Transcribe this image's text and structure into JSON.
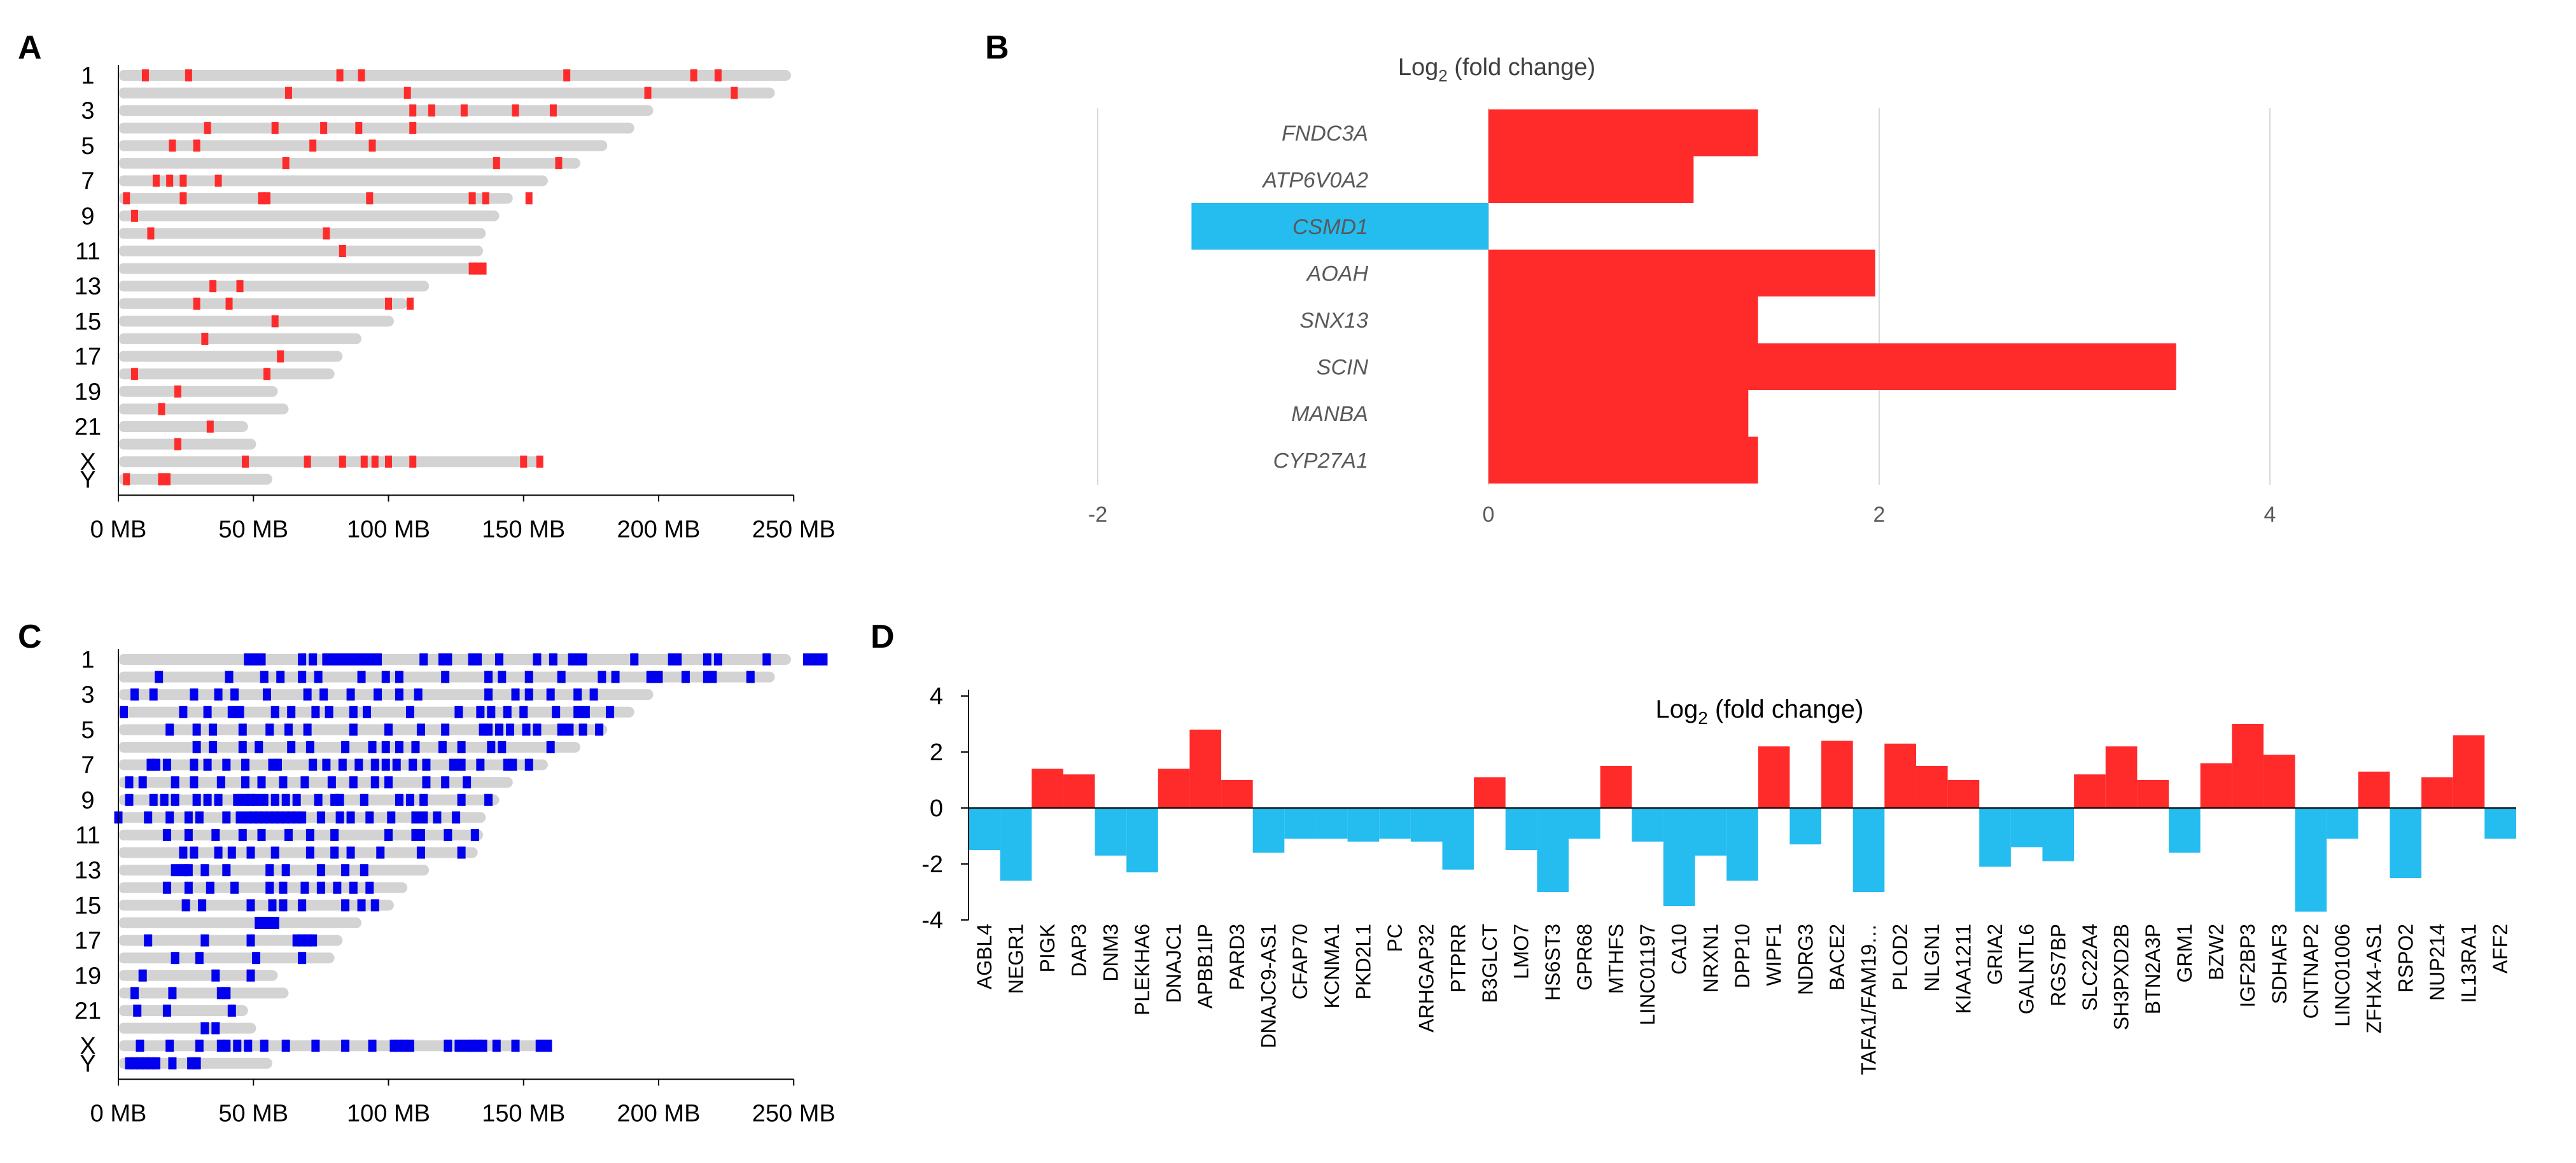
{
  "panels": {
    "A": "A",
    "B": "B",
    "C": "C",
    "D": "D"
  },
  "colors": {
    "ideogram": "#d3d3d3",
    "red": "#ff2b2b",
    "blue": "#0000ee",
    "cyan": "#25bcf0",
    "grid": "#d9d9d9"
  },
  "chart_data": [
    {
      "id": "A",
      "type": "table",
      "description_type": "karyogram",
      "chromosome_labels": [
        "1",
        "3",
        "5",
        "7",
        "9",
        "11",
        "13",
        "15",
        "17",
        "19",
        "21",
        "X",
        "Y"
      ],
      "chromosomes": [
        "1",
        "2",
        "3",
        "4",
        "5",
        "6",
        "7",
        "8",
        "9",
        "10",
        "11",
        "12",
        "13",
        "14",
        "15",
        "16",
        "17",
        "18",
        "19",
        "20",
        "21",
        "22",
        "X",
        "Y"
      ],
      "lengths_mb": [
        249,
        243,
        198,
        191,
        181,
        171,
        159,
        146,
        141,
        136,
        135,
        133,
        115,
        107,
        102,
        90,
        83,
        80,
        59,
        63,
        48,
        51,
        156,
        57
      ],
      "xticks": [
        "0 MB",
        "50 MB",
        "100 MB",
        "150 MB",
        "200 MB",
        "250 MB"
      ],
      "xrange": [
        0,
        260
      ],
      "marks_mb": [
        [
          10,
          26,
          82,
          90,
          166,
          213,
          222
        ],
        [
          63,
          107,
          196,
          228
        ],
        [
          109,
          116,
          128,
          147,
          161
        ],
        [
          33,
          58,
          76,
          89,
          109
        ],
        [
          20,
          29,
          72,
          94
        ],
        [
          62,
          140,
          163
        ],
        [
          14,
          19,
          24,
          37
        ],
        [
          3,
          24,
          53,
          55,
          93,
          131,
          136,
          152
        ],
        [
          6
        ],
        [
          12,
          77
        ],
        [
          83
        ],
        [
          131,
          133,
          135
        ],
        [
          35,
          45
        ],
        [
          29,
          41,
          100,
          108
        ],
        [
          58
        ],
        [
          32
        ],
        [
          60
        ],
        [
          6,
          55
        ],
        [
          22
        ],
        [
          16
        ],
        [
          34
        ],
        [
          22
        ],
        [
          47,
          70,
          83,
          91,
          95,
          100,
          109,
          150,
          156
        ],
        [
          3,
          16,
          18
        ]
      ]
    },
    {
      "id": "B",
      "type": "bar",
      "orientation": "horizontal",
      "title_base": "Log",
      "title_sub": "2",
      "title_rest": " (fold change)",
      "categories": [
        "FNDC3A",
        "ATP6V0A2",
        "CSMD1",
        "AOAH",
        "SNX13",
        "SCIN",
        "MANBA",
        "CYP27A1"
      ],
      "values": [
        1.38,
        1.05,
        -1.52,
        1.98,
        1.38,
        3.52,
        1.33,
        1.38
      ],
      "xlim": [
        -2,
        4
      ],
      "xticks": [
        "-2",
        "0",
        "2",
        "4"
      ]
    },
    {
      "id": "C",
      "type": "table",
      "description_type": "karyogram",
      "chromosome_labels": [
        "1",
        "3",
        "5",
        "7",
        "9",
        "11",
        "13",
        "15",
        "17",
        "19",
        "21",
        "X",
        "Y"
      ],
      "chromosomes": [
        "1",
        "2",
        "3",
        "4",
        "5",
        "6",
        "7",
        "8",
        "9",
        "10",
        "11",
        "12",
        "13",
        "14",
        "15",
        "16",
        "17",
        "18",
        "19",
        "20",
        "21",
        "22",
        "X",
        "Y"
      ],
      "lengths_mb": [
        249,
        243,
        198,
        191,
        181,
        171,
        159,
        146,
        141,
        136,
        135,
        133,
        115,
        107,
        102,
        90,
        83,
        80,
        59,
        63,
        48,
        51,
        156,
        57
      ],
      "xticks": [
        "0 MB",
        "50 MB",
        "100 MB",
        "150 MB",
        "200 MB",
        "250 MB"
      ],
      "xrange": [
        0,
        260
      ],
      "marks_mb": [
        [
          48,
          50,
          53,
          68,
          72,
          77,
          79,
          81,
          83,
          85,
          87,
          89,
          91,
          93,
          96,
          113,
          120,
          122,
          131,
          133,
          141,
          155,
          161,
          168,
          170,
          172,
          191,
          205,
          207,
          218,
          222,
          240,
          255,
          257,
          259,
          261
        ],
        [
          15,
          41,
          54,
          60,
          68,
          74,
          90,
          99,
          104,
          121,
          137,
          142,
          152,
          164,
          179,
          184,
          197,
          200,
          210,
          218,
          220,
          234
        ],
        [
          6,
          13,
          28,
          37,
          43,
          55,
          70,
          76,
          86,
          96,
          104,
          111,
          137,
          147,
          152,
          160,
          170,
          176
        ],
        [
          2,
          24,
          33,
          42,
          45,
          58,
          64,
          73,
          78,
          87,
          92,
          108,
          126,
          134,
          138,
          144,
          150,
          162,
          170,
          173,
          182
        ],
        [
          19,
          29,
          35,
          46,
          56,
          63,
          70,
          87,
          100,
          112,
          121,
          135,
          137,
          141,
          145,
          151,
          155,
          164,
          167,
          172,
          178
        ],
        [
          29,
          35,
          46,
          52,
          64,
          71,
          84,
          94,
          99,
          104,
          110,
          120,
          127,
          138,
          142,
          160
        ],
        [
          12,
          14,
          18,
          28,
          33,
          40,
          47,
          57,
          59,
          72,
          77,
          83,
          89,
          95,
          99,
          103,
          109,
          114,
          124,
          127,
          134,
          144,
          146,
          152
        ],
        [
          4,
          9,
          21,
          28,
          38,
          47,
          53,
          61,
          69,
          79,
          87,
          95,
          100,
          114,
          121,
          129
        ],
        [
          4,
          13,
          17,
          21,
          29,
          33,
          37,
          44,
          47,
          49,
          51,
          54,
          58,
          62,
          66,
          74,
          80,
          82,
          91,
          104,
          108,
          113,
          127,
          137
        ],
        [
          0,
          11,
          19,
          26,
          30,
          40,
          45,
          48,
          50,
          52,
          54,
          56,
          58,
          60,
          62,
          64,
          66,
          68,
          75,
          82,
          86,
          93,
          101,
          110,
          113,
          118,
          125
        ],
        [
          18,
          26,
          36,
          46,
          53,
          63,
          71,
          80,
          100,
          110,
          112,
          122,
          132
        ],
        [
          24,
          28,
          37,
          42,
          49,
          58,
          71,
          80,
          86,
          97,
          112,
          127
        ],
        [
          21,
          24,
          26,
          32,
          40,
          56,
          62,
          75,
          84,
          91
        ],
        [
          18,
          26,
          34,
          43,
          56,
          61,
          69,
          75,
          81,
          87,
          93
        ],
        [
          25,
          31,
          49,
          57,
          61,
          68,
          84,
          90,
          95
        ],
        [
          52,
          54,
          56,
          58
        ],
        [
          11,
          32,
          49,
          66,
          68,
          70,
          72
        ],
        [
          21,
          30,
          51,
          68
        ],
        [
          9,
          36,
          49
        ],
        [
          6,
          20,
          38,
          40
        ],
        [
          7,
          18,
          42
        ],
        [
          32,
          36
        ],
        [
          8,
          19,
          30,
          38,
          40,
          44,
          48,
          54,
          62,
          73,
          84,
          94,
          102,
          104,
          106,
          108,
          122,
          126,
          129,
          131,
          133,
          135,
          140,
          147,
          156,
          159
        ],
        [
          4,
          6,
          8,
          10,
          12,
          14,
          20,
          27,
          29
        ]
      ]
    },
    {
      "id": "D",
      "type": "bar",
      "title_base": "Log",
      "title_sub": "2",
      "title_rest": " (fold change)",
      "categories": [
        "AGBL4",
        "NEGR1",
        "PIGK",
        "DAP3",
        "DNM3",
        "PLEKHA6",
        "DNAJC1",
        "APBB1IP",
        "PARD3",
        "DNAJC9-AS1",
        "CFAP70",
        "KCNMA1",
        "PKD2L1",
        "PC",
        "ARHGAP32",
        "PTPRR",
        "B3GLCT",
        "LMO7",
        "HS6ST3",
        "GPR68",
        "MTHFS",
        "LINC01197",
        "CA10",
        "NRXN1",
        "DPP10",
        "WIPF1",
        "NDRG3",
        "BACE2",
        "TAFA1/FAM19…",
        "PLOD2",
        "NLGN1",
        "KIAA1211",
        "GRIA2",
        "GALNTL6",
        "RGS7BP",
        "SLC22A4",
        "SH3PXD2B",
        "BTN2A3P",
        "GRM1",
        "BZW2",
        "IGF2BP3",
        "SDHAF3",
        "CNTNAP2",
        "LINC01006",
        "ZFHX4-AS1",
        "RSPO2",
        "NUP214",
        "IL13RA1",
        "AFF2"
      ],
      "values": [
        -1.5,
        -2.6,
        1.4,
        1.2,
        -1.7,
        -2.3,
        1.4,
        2.8,
        1.0,
        -1.6,
        -1.1,
        -1.1,
        -1.2,
        -1.1,
        -1.2,
        -2.2,
        1.1,
        -1.5,
        -3.0,
        -1.1,
        1.5,
        -1.2,
        -3.5,
        -1.7,
        -2.6,
        2.2,
        -1.3,
        2.4,
        -3.0,
        2.3,
        1.5,
        1.0,
        -2.1,
        -1.4,
        -1.9,
        1.2,
        2.2,
        1.0,
        -1.6,
        1.6,
        3.0,
        1.9,
        -3.7,
        -1.1,
        1.3,
        -2.5,
        1.1,
        2.6,
        -1.1
      ],
      "ylim": [
        -4,
        4
      ],
      "yticks": [
        "-4",
        "-2",
        "0",
        "2",
        "4"
      ]
    }
  ]
}
